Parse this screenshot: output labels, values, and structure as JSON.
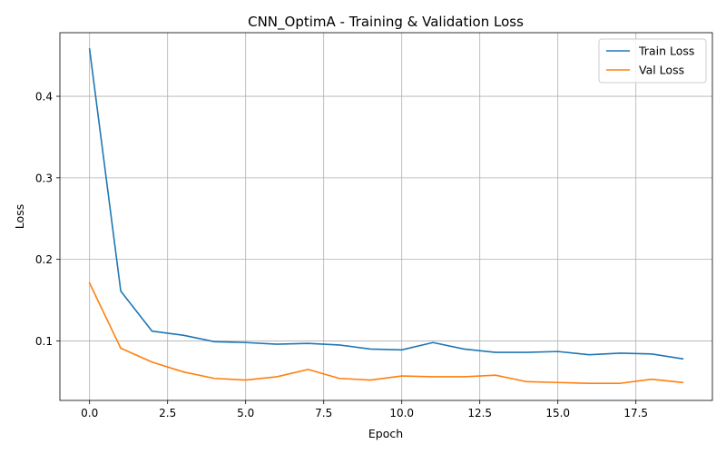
{
  "chart_data": {
    "type": "line",
    "title": "CNN_OptimA - Training & Validation Loss",
    "xlabel": "Epoch",
    "ylabel": "Loss",
    "x": [
      0,
      1,
      2,
      3,
      4,
      5,
      6,
      7,
      8,
      9,
      10,
      11,
      12,
      13,
      14,
      15,
      16,
      17,
      18,
      19
    ],
    "xlim": [
      -0.95,
      19.95
    ],
    "ylim": [
      0.027,
      0.478
    ],
    "xticks": [
      0.0,
      2.5,
      5.0,
      7.5,
      10.0,
      12.5,
      15.0,
      17.5
    ],
    "xtick_labels": [
      "0.0",
      "2.5",
      "5.0",
      "7.5",
      "10.0",
      "12.5",
      "15.0",
      "17.5"
    ],
    "yticks": [
      0.1,
      0.2,
      0.3,
      0.4
    ],
    "ytick_labels": [
      "0.1",
      "0.2",
      "0.3",
      "0.4"
    ],
    "grid": true,
    "legend_position": "top-right",
    "series": [
      {
        "name": "Train Loss",
        "color": "#1f77b4",
        "values": [
          0.458,
          0.161,
          0.112,
          0.107,
          0.099,
          0.098,
          0.096,
          0.097,
          0.095,
          0.09,
          0.089,
          0.098,
          0.09,
          0.086,
          0.086,
          0.087,
          0.083,
          0.085,
          0.084,
          0.078
        ]
      },
      {
        "name": "Val Loss",
        "color": "#ff7f0e",
        "values": [
          0.171,
          0.091,
          0.074,
          0.062,
          0.054,
          0.052,
          0.056,
          0.065,
          0.054,
          0.052,
          0.057,
          0.056,
          0.056,
          0.058,
          0.05,
          0.049,
          0.048,
          0.048,
          0.053,
          0.049
        ]
      }
    ]
  }
}
